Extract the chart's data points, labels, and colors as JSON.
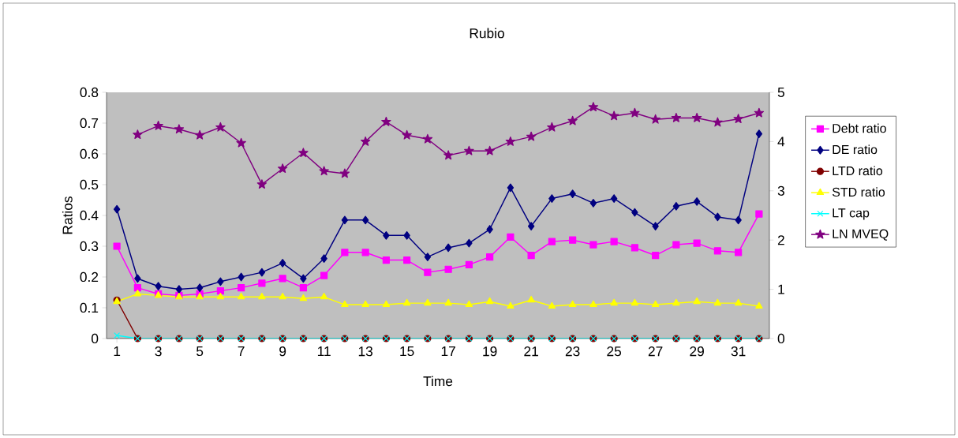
{
  "chart_data": {
    "type": "line",
    "title": "Rubio",
    "xlabel": "Time",
    "ylabel": "Ratios",
    "x": [
      1,
      2,
      3,
      4,
      5,
      6,
      7,
      8,
      9,
      10,
      11,
      12,
      13,
      14,
      15,
      16,
      17,
      18,
      19,
      20,
      21,
      22,
      23,
      24,
      25,
      26,
      27,
      28,
      29,
      30,
      31,
      32
    ],
    "xlim": [
      0.5,
      32.5
    ],
    "xticks": [
      1,
      3,
      5,
      7,
      9,
      11,
      13,
      15,
      17,
      19,
      21,
      23,
      25,
      27,
      29,
      31
    ],
    "ylim": [
      0,
      0.8
    ],
    "yticks": [
      0,
      0.1,
      0.2,
      0.3,
      0.4,
      0.5,
      0.6,
      0.7,
      0.8
    ],
    "y2lim": [
      0,
      5
    ],
    "y2ticks": [
      0,
      1,
      2,
      3,
      4,
      5
    ],
    "legend": "right",
    "line_style": "solid",
    "series": [
      {
        "name": "Debt ratio",
        "color": "#ff00ff",
        "marker": "square",
        "values": [
          0.3,
          0.165,
          0.145,
          0.14,
          0.145,
          0.155,
          0.165,
          0.18,
          0.195,
          0.165,
          0.205,
          0.28,
          0.28,
          0.255,
          0.255,
          0.215,
          0.225,
          0.24,
          0.265,
          0.33,
          0.27,
          0.315,
          0.32,
          0.305,
          0.315,
          0.295,
          0.27,
          0.305,
          0.31,
          0.285,
          0.28,
          0.405
        ]
      },
      {
        "name": "DE ratio",
        "color": "#000080",
        "marker": "diamond",
        "values": [
          0.42,
          0.195,
          0.17,
          0.16,
          0.165,
          0.185,
          0.2,
          0.215,
          0.245,
          0.195,
          0.26,
          0.385,
          0.385,
          0.335,
          0.335,
          0.265,
          0.295,
          0.31,
          0.355,
          0.49,
          0.365,
          0.455,
          0.47,
          0.44,
          0.455,
          0.41,
          0.365,
          0.43,
          0.445,
          0.395,
          0.385,
          0.665
        ]
      },
      {
        "name": "LTD ratio",
        "color": "#800000",
        "marker": "circle",
        "values": [
          0.125,
          0,
          0,
          0,
          0,
          0,
          0,
          0,
          0,
          0,
          0,
          0,
          0,
          0,
          0,
          0,
          0,
          0,
          0,
          0,
          0,
          0,
          0,
          0,
          0,
          0,
          0,
          0,
          0,
          0,
          0,
          0
        ]
      },
      {
        "name": "STD ratio",
        "color": "#ffff00",
        "marker": "triangle",
        "values": [
          0.12,
          0.145,
          0.14,
          0.135,
          0.135,
          0.135,
          0.135,
          0.135,
          0.135,
          0.13,
          0.135,
          0.11,
          0.11,
          0.11,
          0.115,
          0.115,
          0.115,
          0.11,
          0.12,
          0.105,
          0.125,
          0.105,
          0.11,
          0.11,
          0.115,
          0.115,
          0.11,
          0.115,
          0.12,
          0.115,
          0.115,
          0.105
        ]
      },
      {
        "name": "LT cap",
        "color": "#00ffff",
        "marker": "cross",
        "values": [
          0.01,
          0,
          0,
          0,
          0,
          0,
          0,
          0,
          0,
          0,
          0,
          0,
          0,
          0,
          0,
          0,
          0,
          0,
          0,
          0,
          0,
          0,
          0,
          0,
          0,
          0,
          0,
          0,
          0,
          0,
          0,
          0
        ]
      },
      {
        "name": "LN MVEQ",
        "color": "#800080",
        "marker": "star",
        "axis": "y2",
        "values": [
          null,
          4.14,
          4.32,
          4.25,
          4.13,
          4.29,
          3.97,
          3.13,
          3.45,
          3.77,
          3.4,
          3.35,
          4.0,
          4.4,
          4.13,
          4.05,
          3.72,
          3.81,
          3.81,
          4.0,
          4.1,
          4.29,
          4.42,
          4.7,
          4.52,
          4.58,
          4.45,
          4.48,
          4.48,
          4.39,
          4.46,
          4.58
        ]
      }
    ]
  }
}
